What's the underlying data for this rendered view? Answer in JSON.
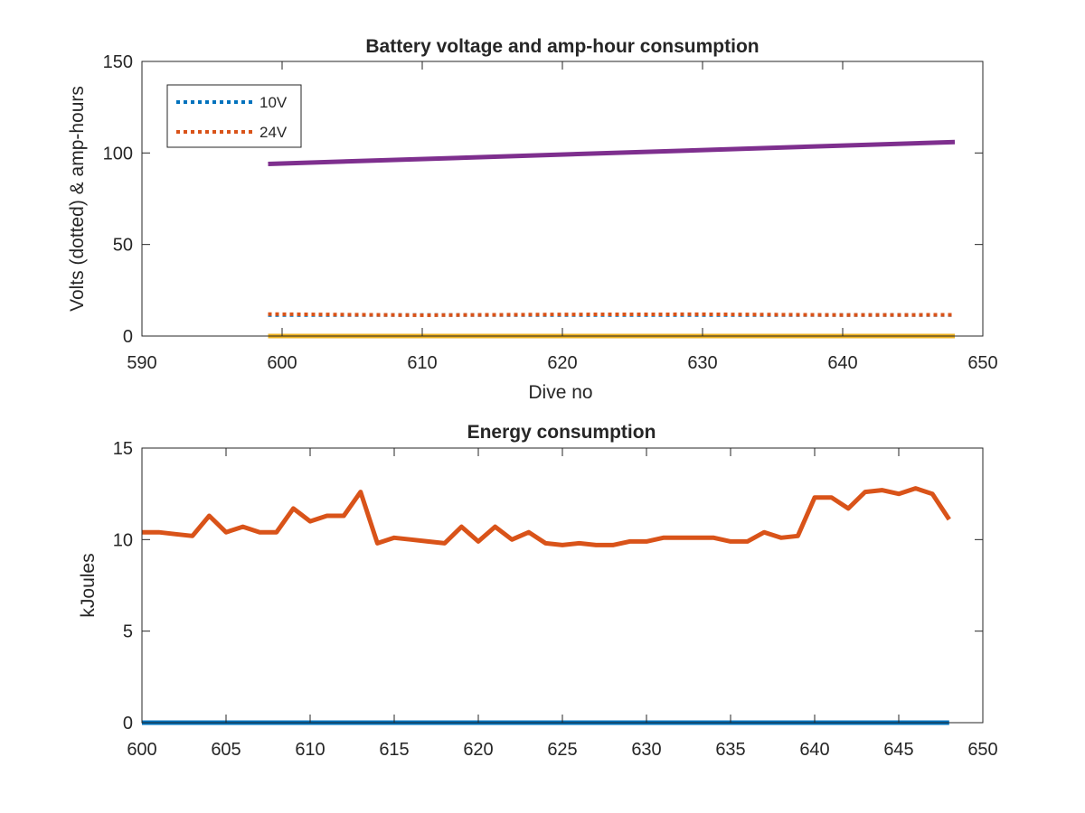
{
  "chart_data": [
    {
      "type": "line",
      "title": "Battery voltage and amp-hour consumption",
      "xlabel": "Dive no",
      "ylabel": "Volts (dotted) & amp-hours",
      "xlim": [
        590,
        650
      ],
      "ylim": [
        0,
        150
      ],
      "xticks": [
        "590",
        "600",
        "610",
        "620",
        "630",
        "640",
        "650"
      ],
      "yticks": [
        "0",
        "50",
        "100",
        "150"
      ],
      "grid": false,
      "legend_position": "top-left",
      "series": [
        {
          "name": "10V",
          "style": "dotted",
          "color": "#0072BD",
          "x": [
            599,
            648
          ],
          "y": [
            11.5,
            11.5
          ]
        },
        {
          "name": "24V",
          "style": "dotted",
          "color": "#D95319",
          "x": [
            599,
            610,
            620,
            630,
            640,
            648
          ],
          "y": [
            12.0,
            11.4,
            11.8,
            11.9,
            11.5,
            11.6
          ]
        },
        {
          "style": "solid",
          "color": "#EDB120",
          "x": [
            599,
            648
          ],
          "y": [
            0,
            0
          ]
        },
        {
          "style": "solid",
          "color": "#7E2F8E",
          "x": [
            599,
            648
          ],
          "y": [
            94,
            106
          ]
        }
      ]
    },
    {
      "type": "line",
      "title": "Energy consumption",
      "xlabel": "",
      "ylabel": "kJoules",
      "xlim": [
        600,
        650
      ],
      "ylim": [
        0,
        15
      ],
      "xticks": [
        "600",
        "605",
        "610",
        "615",
        "620",
        "625",
        "630",
        "635",
        "640",
        "645",
        "650"
      ],
      "yticks": [
        "0",
        "5",
        "10",
        "15"
      ],
      "grid": false,
      "series": [
        {
          "style": "solid",
          "color": "#0072BD",
          "x": [
            600,
            648
          ],
          "y": [
            0,
            0
          ]
        },
        {
          "style": "solid",
          "color": "#D95319",
          "x": [
            600,
            601,
            602,
            603,
            604,
            605,
            606,
            607,
            608,
            609,
            610,
            611,
            612,
            613,
            614,
            615,
            616,
            617,
            618,
            619,
            620,
            621,
            622,
            623,
            624,
            625,
            626,
            627,
            628,
            629,
            630,
            631,
            632,
            633,
            634,
            635,
            636,
            637,
            638,
            639,
            640,
            641,
            642,
            643,
            644,
            645,
            646,
            647,
            648
          ],
          "y": [
            10.4,
            10.4,
            10.3,
            10.2,
            11.3,
            10.4,
            10.7,
            10.4,
            10.4,
            11.7,
            11.0,
            11.3,
            11.3,
            12.6,
            9.8,
            10.1,
            10.0,
            9.9,
            9.8,
            10.7,
            9.9,
            10.7,
            10.0,
            10.4,
            9.8,
            9.7,
            9.8,
            9.7,
            9.7,
            9.9,
            9.9,
            10.1,
            10.1,
            10.1,
            10.1,
            9.9,
            9.9,
            10.4,
            10.1,
            10.2,
            12.3,
            12.3,
            11.7,
            12.6,
            12.7,
            12.5,
            12.8,
            12.5,
            11.1
          ]
        }
      ]
    }
  ]
}
